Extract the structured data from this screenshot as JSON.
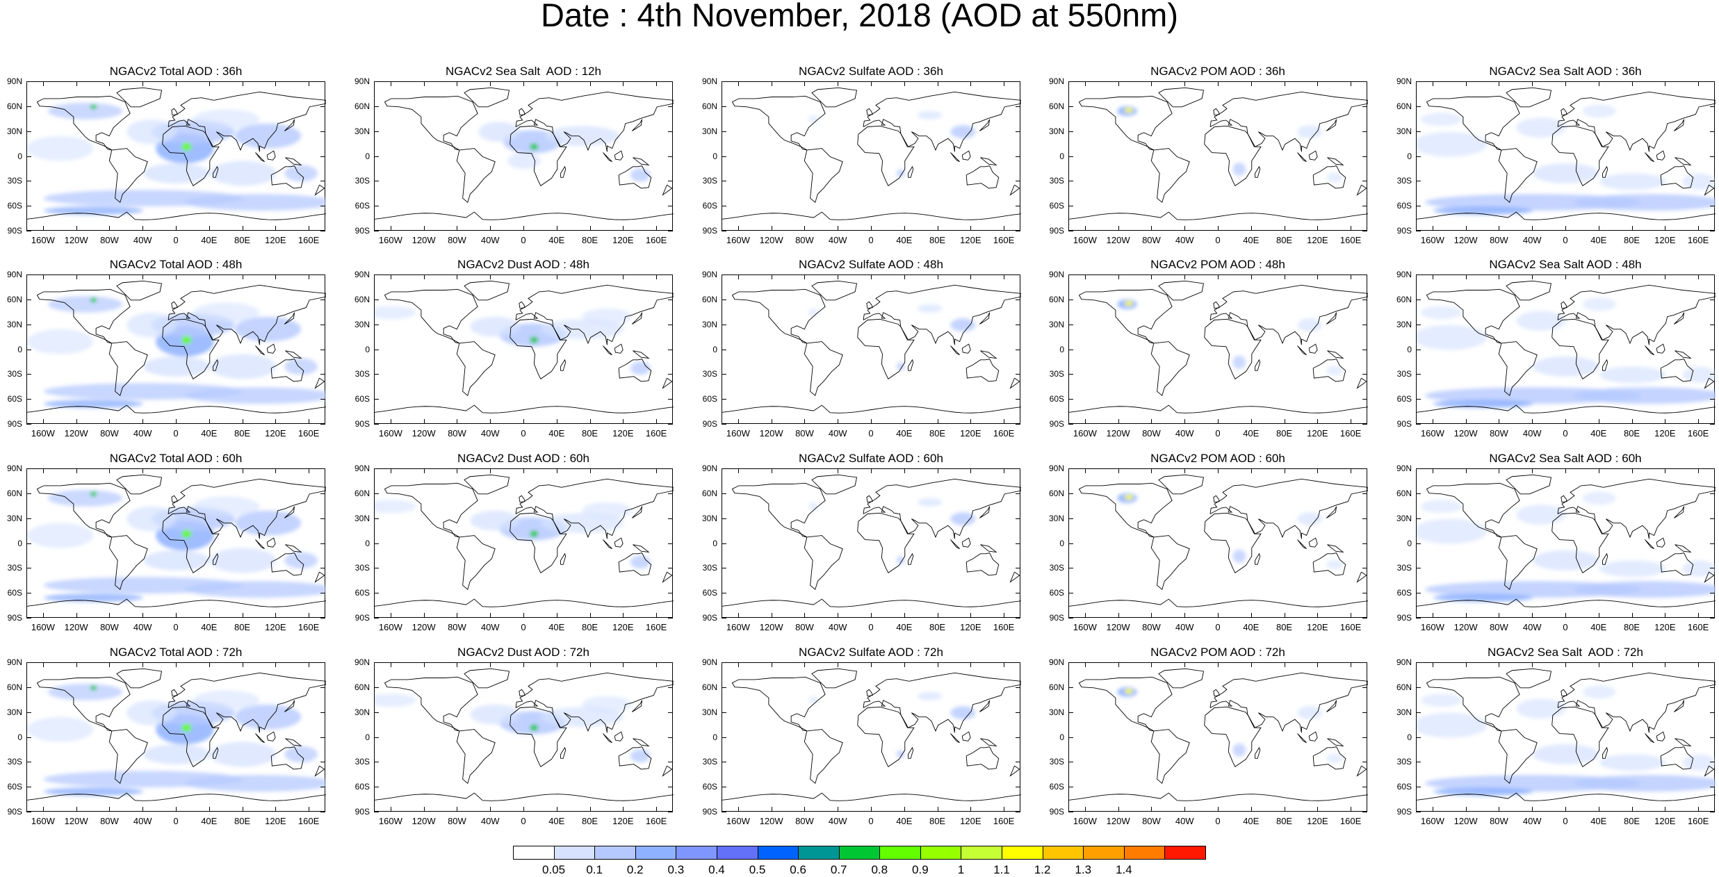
{
  "title": "Date : 4th November, 2018 (AOD at 550nm)",
  "lat_ticks": [
    "90N",
    "60N",
    "30N",
    "0",
    "30S",
    "60S",
    "90S"
  ],
  "lon_ticks": [
    "160W",
    "120W",
    "80W",
    "40W",
    "0",
    "40E",
    "80E",
    "120E",
    "160E"
  ],
  "panels": [
    [
      "NGACv2 Total AOD : 36h",
      "NGACv2 Sea Salt  AOD : 12h",
      "NGACv2 Sulfate AOD : 36h",
      "NGACv2 POM AOD : 36h",
      "NGACv2 Sea Salt AOD : 36h"
    ],
    [
      "NGACv2 Total AOD : 48h",
      "NGACv2 Dust AOD : 48h",
      "NGACv2 Sulfate AOD : 48h",
      "NGACv2 POM AOD : 48h",
      "NGACv2 Sea Salt AOD : 48h"
    ],
    [
      "NGACv2 Total AOD : 60h",
      "NGACv2 Dust AOD : 60h",
      "NGACv2 Sulfate AOD : 60h",
      "NGACv2 POM AOD : 60h",
      "NGACv2 Sea Salt AOD : 60h"
    ],
    [
      "NGACv2 Total AOD : 72h",
      "NGACv2 Dust AOD : 72h",
      "NGACv2 Sulfate AOD : 72h",
      "NGACv2 POM AOD : 72h",
      "NGACv2 Sea Salt  AOD : 72h"
    ]
  ],
  "colorbar": {
    "labels": [
      "0.05",
      "0.1",
      "0.2",
      "0.3",
      "0.4",
      "0.5",
      "0.6",
      "0.7",
      "0.8",
      "0.9",
      "1",
      "1.1",
      "1.2",
      "1.3",
      "1.4"
    ],
    "colors": [
      "#ffffff",
      "#d6e2ff",
      "#b5c9ff",
      "#8eb2ff",
      "#7f96ff",
      "#6370f8",
      "#0063ff",
      "#009696",
      "#00c633",
      "#63ff00",
      "#96ff00",
      "#c6ff33",
      "#ffff00",
      "#ffc600",
      "#ffa000",
      "#ff7c00",
      "#ff1900"
    ]
  },
  "panel_types": [
    [
      "total",
      "seasalt12",
      "sulfate",
      "pom",
      "seasalt"
    ],
    [
      "total",
      "dust",
      "sulfate",
      "pom",
      "seasalt"
    ],
    [
      "total",
      "dust",
      "sulfate",
      "pom",
      "seasalt"
    ],
    [
      "total",
      "dust",
      "sulfate",
      "pom",
      "seasalt"
    ]
  ]
}
